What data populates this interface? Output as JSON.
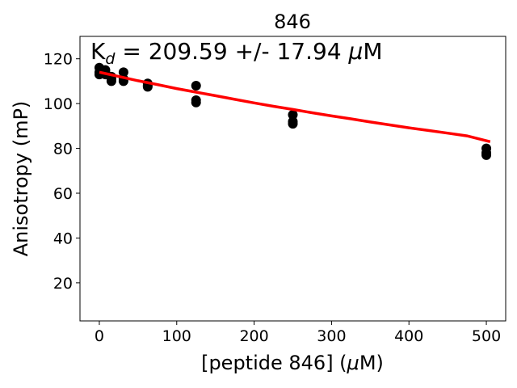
{
  "chart_data": {
    "type": "scatter",
    "title": "846",
    "xlabel_text": "[peptide 846] (",
    "xlabel_mu": "μ",
    "xlabel_tail": "M)",
    "ylabel": "Anisotropy (mP)",
    "annotation": {
      "k": "K",
      "sub": "d",
      "mid": " = 209.59 +/- 17.94 ",
      "mu": "μ",
      "unit": "M"
    },
    "xlim": [
      -25,
      525
    ],
    "ylim": [
      3,
      130
    ],
    "xticks": [
      0,
      100,
      200,
      300,
      400,
      500
    ],
    "yticks": [
      20,
      40,
      60,
      80,
      100,
      120
    ],
    "grid": false,
    "points": [
      {
        "x": 0,
        "y": 116
      },
      {
        "x": 0,
        "y": 114
      },
      {
        "x": 0,
        "y": 113
      },
      {
        "x": 7.8,
        "y": 115
      },
      {
        "x": 7.8,
        "y": 114
      },
      {
        "x": 7.8,
        "y": 113
      },
      {
        "x": 15.6,
        "y": 112
      },
      {
        "x": 15.6,
        "y": 111
      },
      {
        "x": 15.6,
        "y": 110
      },
      {
        "x": 31.25,
        "y": 114
      },
      {
        "x": 31.25,
        "y": 111
      },
      {
        "x": 31.25,
        "y": 110
      },
      {
        "x": 62.5,
        "y": 109
      },
      {
        "x": 62.5,
        "y": 108
      },
      {
        "x": 62.5,
        "y": 107.5
      },
      {
        "x": 125,
        "y": 108
      },
      {
        "x": 125,
        "y": 101.5
      },
      {
        "x": 125,
        "y": 100.5
      },
      {
        "x": 250,
        "y": 95
      },
      {
        "x": 250,
        "y": 92
      },
      {
        "x": 250,
        "y": 91
      },
      {
        "x": 500,
        "y": 80
      },
      {
        "x": 500,
        "y": 78
      },
      {
        "x": 500,
        "y": 77
      }
    ],
    "fit_curve": {
      "color": "#ff0000",
      "x": [
        0,
        25,
        50,
        75,
        100,
        125,
        150,
        175,
        200,
        225,
        250,
        275,
        300,
        325,
        350,
        375,
        400,
        425,
        450,
        475,
        505
      ],
      "y": [
        114.0,
        112.1,
        110.2,
        108.5,
        106.7,
        105.1,
        103.5,
        101.9,
        100.3,
        98.8,
        97.4,
        95.9,
        94.5,
        93.2,
        91.8,
        90.5,
        89.2,
        88.0,
        86.8,
        85.6,
        83.0
      ]
    },
    "point_color": "#000000"
  }
}
